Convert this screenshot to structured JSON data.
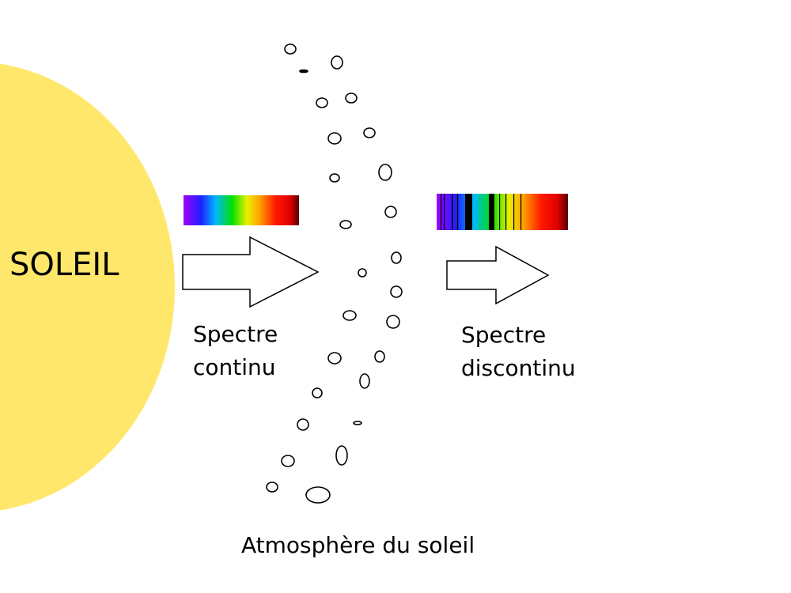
{
  "sun": {
    "label": "SOLEIL",
    "color": "#FFE76B"
  },
  "continuous_spectrum": {
    "label_line1": "Spectre",
    "label_line2": "continu"
  },
  "discontinuous_spectrum": {
    "label_line1": "Spectre",
    "label_line2": "discontinu",
    "absorption_line_color": "#000000"
  },
  "atmosphere": {
    "label": "Atmosphère du soleil"
  },
  "arrows": {
    "stroke": "#000000",
    "fill": "#ffffff"
  }
}
